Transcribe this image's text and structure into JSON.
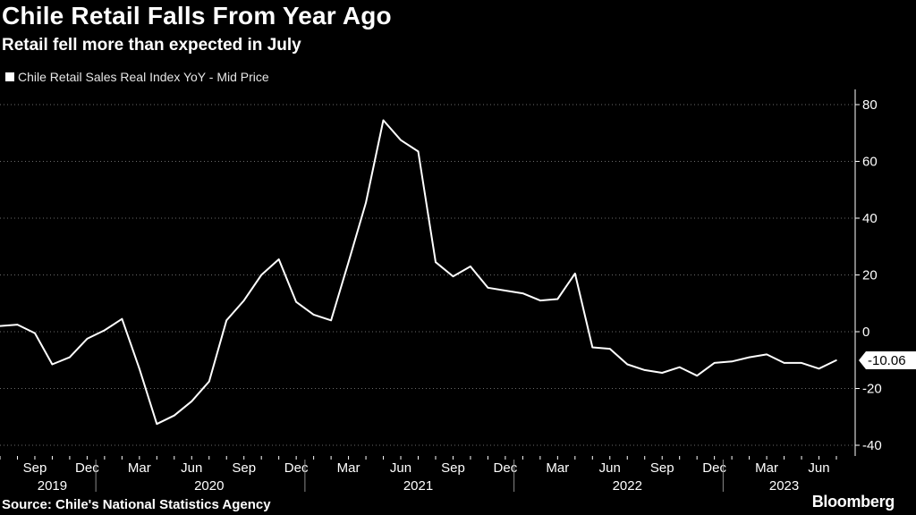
{
  "header": {
    "title": "Chile Retail Falls From Year Ago",
    "subtitle": "Retail fell more than expected in July"
  },
  "footer": {
    "source": "Source: Chile's National Statistics Agency",
    "brand": "Bloomberg"
  },
  "colors": {
    "background": "#000000",
    "line": "#ffffff",
    "grid": "#6b6b6b"
  },
  "chart_data": {
    "type": "line",
    "legend_position": "top-left",
    "grid": "horizontal dotted",
    "y_axis_side": "right",
    "ylim": [
      -40,
      80
    ],
    "yticks": [
      80,
      60,
      40,
      20,
      0,
      -20,
      -40
    ],
    "month_ticks": [
      {
        "label": "Sep",
        "date": "2019-09"
      },
      {
        "label": "Dec",
        "date": "2019-12"
      },
      {
        "label": "Mar",
        "date": "2020-03"
      },
      {
        "label": "Jun",
        "date": "2020-06"
      },
      {
        "label": "Sep",
        "date": "2020-09"
      },
      {
        "label": "Dec",
        "date": "2020-12"
      },
      {
        "label": "Mar",
        "date": "2021-03"
      },
      {
        "label": "Jun",
        "date": "2021-06"
      },
      {
        "label": "Sep",
        "date": "2021-09"
      },
      {
        "label": "Dec",
        "date": "2021-12"
      },
      {
        "label": "Mar",
        "date": "2022-03"
      },
      {
        "label": "Jun",
        "date": "2022-06"
      },
      {
        "label": "Sep",
        "date": "2022-09"
      },
      {
        "label": "Dec",
        "date": "2022-12"
      },
      {
        "label": "Mar",
        "date": "2023-03"
      },
      {
        "label": "Jun",
        "date": "2023-06"
      }
    ],
    "year_labels": [
      "2019",
      "2020",
      "2021",
      "2022",
      "2023"
    ],
    "series": [
      {
        "name": "Chile Retail Sales Real Index YoY - Mid Price",
        "last_value_label": "-10.06",
        "x": [
          "2019-07",
          "2019-08",
          "2019-09",
          "2019-10",
          "2019-11",
          "2019-12",
          "2020-01",
          "2020-02",
          "2020-03",
          "2020-04",
          "2020-05",
          "2020-06",
          "2020-07",
          "2020-08",
          "2020-09",
          "2020-10",
          "2020-11",
          "2020-12",
          "2021-01",
          "2021-02",
          "2021-03",
          "2021-04",
          "2021-05",
          "2021-06",
          "2021-07",
          "2021-08",
          "2021-09",
          "2021-10",
          "2021-11",
          "2021-12",
          "2022-01",
          "2022-02",
          "2022-03",
          "2022-04",
          "2022-05",
          "2022-06",
          "2022-07",
          "2022-08",
          "2022-09",
          "2022-10",
          "2022-11",
          "2022-12",
          "2023-01",
          "2023-02",
          "2023-03",
          "2023-04",
          "2023-05",
          "2023-06",
          "2023-07"
        ],
        "values": [
          2.0,
          2.5,
          -0.5,
          -11.5,
          -9.0,
          -2.5,
          0.5,
          4.5,
          -13.0,
          -32.5,
          -29.5,
          -24.5,
          -17.5,
          4.0,
          11.0,
          20.0,
          25.5,
          10.5,
          6.0,
          4.0,
          24.5,
          45.5,
          74.5,
          67.5,
          63.5,
          24.5,
          19.5,
          23.0,
          15.5,
          14.5,
          13.5,
          11.0,
          11.5,
          20.5,
          -5.5,
          -6.0,
          -11.5,
          -13.5,
          -14.5,
          -12.5,
          -15.5,
          -11.0,
          -10.5,
          -9.0,
          -8.0,
          -11.0,
          -11.0,
          -13.0,
          -10.06
        ]
      }
    ]
  }
}
